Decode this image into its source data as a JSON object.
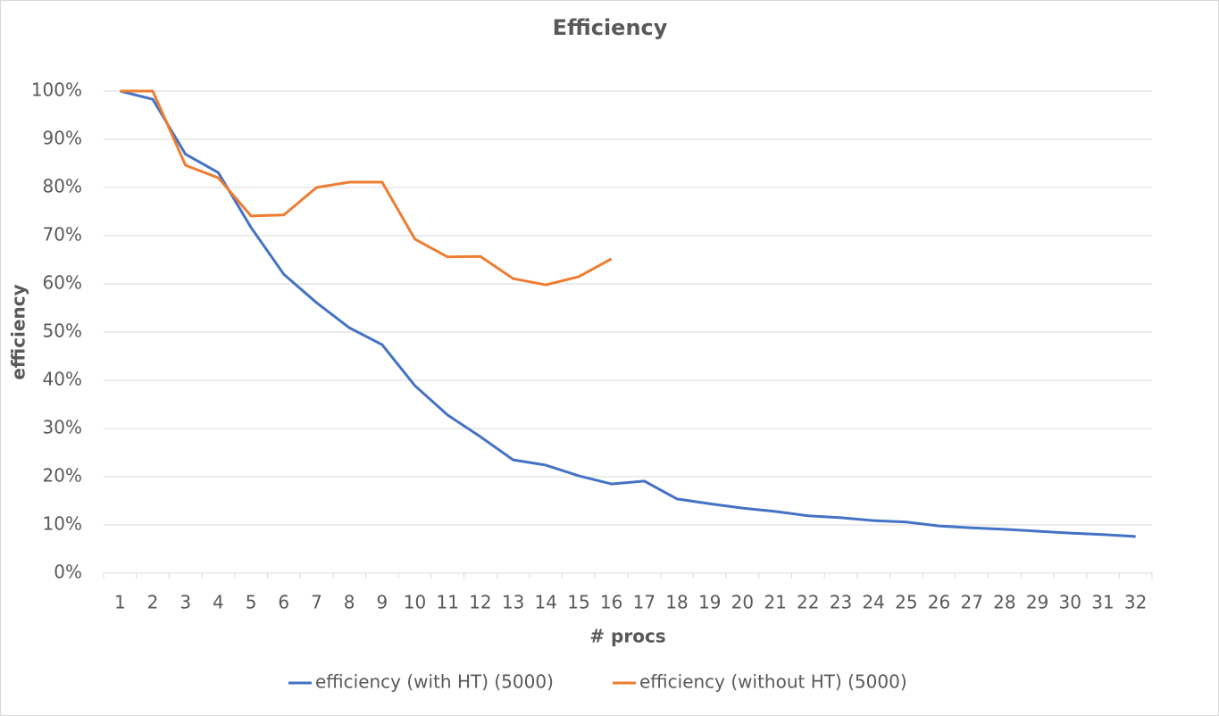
{
  "chart_data": {
    "type": "line",
    "title": "Efficiency",
    "x_label": "# procs",
    "y_label": "efficiency",
    "categories": [
      "1",
      "2",
      "3",
      "4",
      "5",
      "6",
      "7",
      "8",
      "9",
      "10",
      "11",
      "12",
      "13",
      "14",
      "15",
      "16",
      "17",
      "18",
      "19",
      "20",
      "21",
      "22",
      "23",
      "24",
      "25",
      "26",
      "27",
      "28",
      "29",
      "30",
      "31",
      "32"
    ],
    "series": [
      {
        "name": "efficiency (with HT) (5000)",
        "color": "#4472c4",
        "values": [
          100,
          98.3,
          86.9,
          83.1,
          71.7,
          62.0,
          56.1,
          50.9,
          47.4,
          38.9,
          32.8,
          28.3,
          23.5,
          22.4,
          20.2,
          18.5,
          19.1,
          15.4,
          14.4,
          13.5,
          12.8,
          11.9,
          11.5,
          10.9,
          10.6,
          9.8,
          9.4,
          9.1,
          8.7,
          8.3,
          8.0,
          7.6
        ]
      },
      {
        "name": "efficiency (without HT) (5000)",
        "color": "#ed7d31",
        "values": [
          100,
          100,
          84.6,
          82.0,
          74.1,
          74.3,
          80.0,
          81.1,
          81.1,
          69.3,
          65.6,
          65.7,
          61.1,
          59.8,
          61.5,
          65.2,
          null,
          null,
          null,
          null,
          null,
          null,
          null,
          null,
          null,
          null,
          null,
          null,
          null,
          null,
          null,
          null
        ]
      }
    ],
    "ylim": [
      0,
      100
    ],
    "yticks": [
      {
        "value": 0,
        "label": "0%"
      },
      {
        "value": 10,
        "label": "10%"
      },
      {
        "value": 20,
        "label": "20%"
      },
      {
        "value": 30,
        "label": "30%"
      },
      {
        "value": 40,
        "label": "40%"
      },
      {
        "value": 50,
        "label": "50%"
      },
      {
        "value": 60,
        "label": "60%"
      },
      {
        "value": 70,
        "label": "70%"
      },
      {
        "value": 80,
        "label": "80%"
      },
      {
        "value": 90,
        "label": "90%"
      },
      {
        "value": 100,
        "label": "100%"
      }
    ],
    "grid": true,
    "legend": "bottom"
  }
}
